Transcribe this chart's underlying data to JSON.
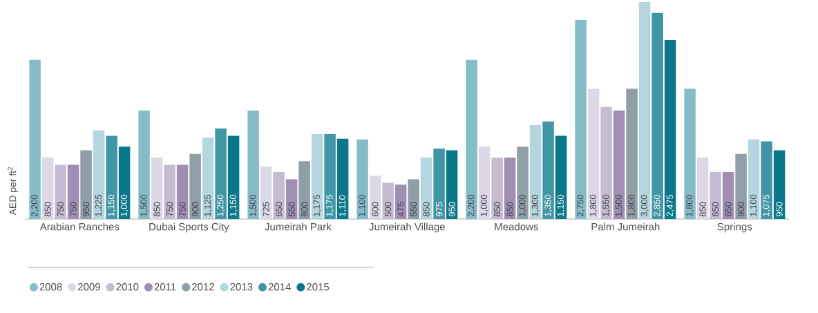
{
  "chart_data": {
    "type": "bar",
    "ylabel": "AED per ft$^{2}$",
    "categories": [
      "Arabian Ranches",
      "Dubai Sports City",
      "Jumeirah Park",
      "Jumeirah Village",
      "Meadows",
      "Palm Jumeirah",
      "Springs"
    ],
    "series": [
      {
        "name": "2008",
        "color": "#86bcc8",
        "values": [
          2200,
          1500,
          1500,
          1100,
          2200,
          2750,
          1800
        ],
        "value_labels": [
          "2,200",
          "1,500",
          "1,500",
          "1,100",
          "2,200",
          "2,750",
          "1,800"
        ]
      },
      {
        "name": "2009",
        "color": "#ddd8e6",
        "values": [
          850,
          850,
          725,
          600,
          1000,
          1800,
          850
        ],
        "value_labels": [
          "850",
          "850",
          "725",
          "600",
          "1,000",
          "1,800",
          "850"
        ]
      },
      {
        "name": "2010",
        "color": "#c5bcd2",
        "values": [
          750,
          750,
          650,
          500,
          850,
          1550,
          650
        ],
        "value_labels": [
          "750",
          "750",
          "650",
          "500",
          "850",
          "1,550",
          "650"
        ]
      },
      {
        "name": "2011",
        "color": "#a08fb2",
        "values": [
          750,
          750,
          550,
          475,
          850,
          1500,
          650
        ],
        "value_labels": [
          "750",
          "750",
          "550",
          "475",
          "850",
          "1,500",
          "650"
        ]
      },
      {
        "name": "2012",
        "color": "#8f9ea7",
        "values": [
          950,
          900,
          800,
          550,
          1000,
          1800,
          900
        ],
        "value_labels": [
          "950",
          "900",
          "800",
          "550",
          "1,000",
          "1,800",
          "900"
        ]
      },
      {
        "name": "2013",
        "color": "#b5d6de",
        "values": [
          1225,
          1125,
          1175,
          850,
          1300,
          3000,
          1100
        ],
        "value_labels": [
          "1,225",
          "1,125",
          "1,175",
          "850",
          "1,300",
          "3,000",
          "1,100"
        ]
      },
      {
        "name": "2014",
        "color": "#4196a6",
        "values": [
          1150,
          1250,
          1175,
          975,
          1350,
          2850,
          1075
        ],
        "value_labels": [
          "1,150",
          "1,250",
          "1,175",
          "975",
          "1,350",
          "2,850",
          "1,075"
        ]
      },
      {
        "name": "2015",
        "color": "#0b778b",
        "values": [
          1000,
          1150,
          1110,
          950,
          1150,
          2475,
          950
        ],
        "value_labels": [
          "1,000",
          "1,150",
          "1,110",
          "950",
          "1,150",
          "2,475",
          "950"
        ]
      }
    ],
    "legend": "bottom left"
  }
}
